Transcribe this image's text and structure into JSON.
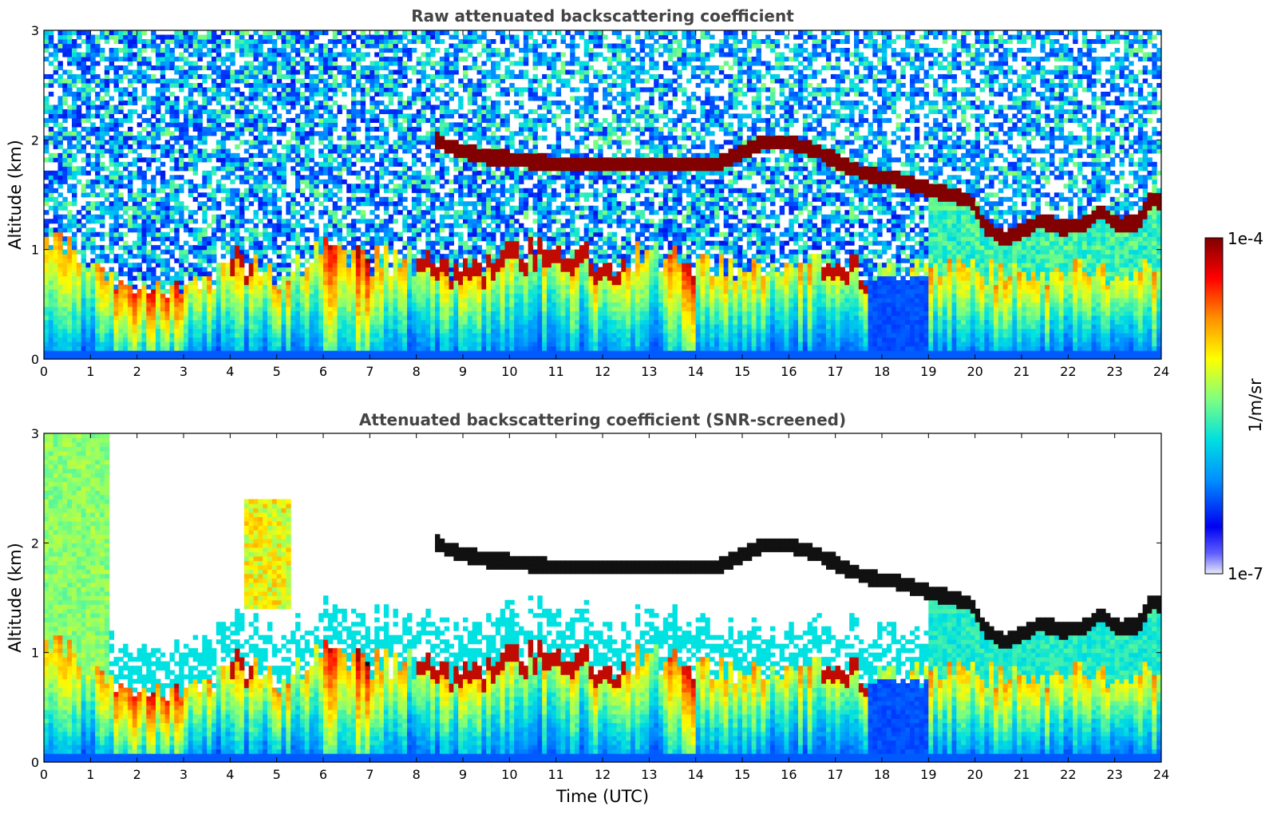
{
  "chart_data": [
    {
      "type": "heatmap",
      "title": "Raw attenuated backscattering coefficient",
      "xlabel": "",
      "ylabel": "Altitude (km)",
      "xlim": [
        0,
        24
      ],
      "ylim": [
        0,
        3
      ],
      "xticks": [
        "0",
        "1",
        "2",
        "3",
        "4",
        "5",
        "6",
        "7",
        "8",
        "9",
        "10",
        "11",
        "12",
        "13",
        "14",
        "15",
        "16",
        "17",
        "18",
        "19",
        "20",
        "21",
        "22",
        "23",
        "24"
      ],
      "yticks": [
        "0",
        "1",
        "2",
        "3"
      ],
      "screened": false,
      "cloud_layer_km": [
        [
          8.4,
          2.0
        ],
        [
          8.8,
          1.92
        ],
        [
          9.5,
          1.85
        ],
        [
          10.2,
          1.82
        ],
        [
          11.0,
          1.78
        ],
        [
          11.7,
          1.78
        ],
        [
          12.4,
          1.78
        ],
        [
          14.5,
          1.78
        ],
        [
          15.0,
          1.9
        ],
        [
          15.5,
          1.98
        ],
        [
          16.0,
          1.98
        ],
        [
          16.5,
          1.92
        ],
        [
          17.7,
          1.68
        ],
        [
          18.2,
          1.66
        ],
        [
          19.0,
          1.55
        ],
        [
          19.5,
          1.5
        ],
        [
          19.9,
          1.45
        ],
        [
          20.2,
          1.22
        ],
        [
          20.6,
          1.1
        ],
        [
          21.1,
          1.18
        ],
        [
          21.4,
          1.28
        ],
        [
          21.8,
          1.2
        ],
        [
          22.3,
          1.22
        ],
        [
          22.7,
          1.35
        ],
        [
          23.1,
          1.22
        ],
        [
          23.5,
          1.25
        ],
        [
          23.8,
          1.48
        ],
        [
          24.0,
          1.42
        ]
      ],
      "boundary_layer_km": [
        [
          0,
          1.2
        ],
        [
          1.5,
          0.7
        ],
        [
          2.5,
          0.65
        ],
        [
          3.5,
          0.7
        ],
        [
          4.2,
          0.95
        ],
        [
          5.0,
          0.75
        ],
        [
          6.0,
          1.0
        ],
        [
          7.0,
          0.9
        ],
        [
          8.0,
          0.9
        ],
        [
          9.0,
          0.85
        ],
        [
          10.0,
          0.95
        ],
        [
          11.0,
          1.0
        ],
        [
          12.0,
          0.9
        ],
        [
          13.0,
          0.95
        ],
        [
          14.0,
          0.85
        ],
        [
          15.0,
          0.85
        ],
        [
          16.0,
          0.9
        ],
        [
          17.0,
          0.95
        ],
        [
          17.7,
          0.8
        ]
      ]
    },
    {
      "type": "heatmap",
      "title": "Attenuated backscattering coefficient (SNR-screened)",
      "xlabel": "Time (UTC)",
      "ylabel": "Altitude (km)",
      "xlim": [
        0,
        24
      ],
      "ylim": [
        0,
        3
      ],
      "xticks": [
        "0",
        "1",
        "2",
        "3",
        "4",
        "5",
        "6",
        "7",
        "8",
        "9",
        "10",
        "11",
        "12",
        "13",
        "14",
        "15",
        "16",
        "17",
        "18",
        "19",
        "20",
        "21",
        "22",
        "23",
        "24"
      ],
      "yticks": [
        "0",
        "1",
        "2",
        "3"
      ],
      "screened": true
    }
  ],
  "colorbar": {
    "label": "1/m/sr",
    "max_label": "1e-4",
    "min_label": "1e-7",
    "colors": [
      "#e8e8f8",
      "#0000f0",
      "#0090ff",
      "#00e0e0",
      "#80ff80",
      "#ffff00",
      "#ff9000",
      "#ff0000",
      "#800000"
    ]
  }
}
